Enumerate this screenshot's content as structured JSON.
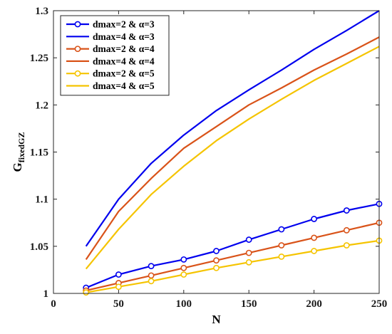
{
  "chart_data": {
    "type": "line",
    "xlabel": "N",
    "ylabel": {
      "main": "G",
      "sub": "fixedGZ"
    },
    "xlim": [
      0,
      250
    ],
    "ylim": [
      1,
      1.3
    ],
    "xticks": [
      0,
      50,
      100,
      150,
      200,
      250
    ],
    "yticks": [
      1,
      1.05,
      1.1,
      1.15,
      1.2,
      1.25,
      1.3
    ],
    "xtick_labels": [
      "0",
      "50",
      "100",
      "150",
      "200",
      "250"
    ],
    "ytick_labels": [
      "1",
      "1.05",
      "1.1",
      "1.15",
      "1.2",
      "1.25",
      "1.3"
    ],
    "grid": false,
    "legend_position": "top-left",
    "x": [
      25,
      50,
      75,
      100,
      125,
      150,
      175,
      200,
      225,
      250
    ],
    "series": [
      {
        "name": "dmax=2 & α=3",
        "color": "#0000ee",
        "marker": "circle",
        "values": [
          1.006,
          1.02,
          1.029,
          1.036,
          1.045,
          1.057,
          1.068,
          1.079,
          1.088,
          1.095
        ]
      },
      {
        "name": "dmax=4 & α=3",
        "color": "#0000ee",
        "marker": "none",
        "values": [
          1.05,
          1.1,
          1.138,
          1.168,
          1.194,
          1.216,
          1.237,
          1.259,
          1.279,
          1.3
        ]
      },
      {
        "name": "dmax=2 & α=4",
        "color": "#d95319",
        "marker": "circle",
        "values": [
          1.003,
          1.011,
          1.019,
          1.027,
          1.035,
          1.043,
          1.051,
          1.059,
          1.067,
          1.075
        ]
      },
      {
        "name": "dmax=4 & α=4",
        "color": "#d95319",
        "marker": "none",
        "values": [
          1.036,
          1.087,
          1.122,
          1.154,
          1.177,
          1.2,
          1.218,
          1.237,
          1.254,
          1.272
        ]
      },
      {
        "name": "dmax=2 & α=5",
        "color": "#f5c400",
        "marker": "circle",
        "values": [
          1.001,
          1.007,
          1.013,
          1.02,
          1.027,
          1.033,
          1.039,
          1.045,
          1.051,
          1.056
        ]
      },
      {
        "name": "dmax=4 & α=5",
        "color": "#f5c400",
        "marker": "none",
        "values": [
          1.026,
          1.068,
          1.105,
          1.135,
          1.162,
          1.185,
          1.206,
          1.226,
          1.244,
          1.262
        ]
      }
    ]
  }
}
